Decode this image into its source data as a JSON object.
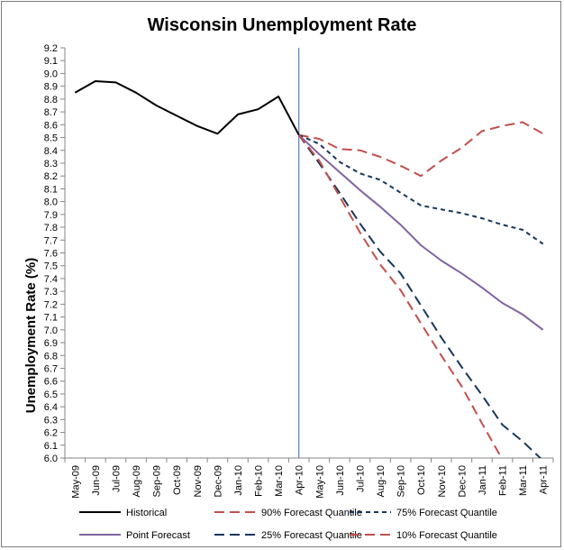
{
  "chart_data": {
    "type": "line",
    "title": "Wisconsin Unemployment Rate",
    "xlabel": "",
    "ylabel": "Unemployment Rate (%)",
    "ylim": [
      6.0,
      9.2
    ],
    "ytick_step": 0.1,
    "grid": false,
    "legend_position": "bottom",
    "vertical_marker_at": "Apr-10",
    "categories": [
      "May-09",
      "Jun-09",
      "Jul-09",
      "Aug-09",
      "Sep-09",
      "Oct-09",
      "Nov-09",
      "Dec-09",
      "Jan-10",
      "Feb-10",
      "Mar-10",
      "Apr-10",
      "May-10",
      "Jun-10",
      "Jul-10",
      "Aug-10",
      "Sep-10",
      "Oct-10",
      "Nov-10",
      "Dec-10",
      "Jan-11",
      "Feb-11",
      "Mar-11",
      "Apr-11"
    ],
    "series": [
      {
        "name": "Historical",
        "color": "#000000",
        "dash": "solid",
        "width": 2,
        "values": [
          8.85,
          8.94,
          8.93,
          8.85,
          8.75,
          8.67,
          8.59,
          8.53,
          8.68,
          8.72,
          8.82,
          8.52,
          null,
          null,
          null,
          null,
          null,
          null,
          null,
          null,
          null,
          null,
          null,
          null
        ]
      },
      {
        "name": "90% Forecast Quantile",
        "color": "#c0504d",
        "dash": "long",
        "width": 2,
        "values": [
          null,
          null,
          null,
          null,
          null,
          null,
          null,
          null,
          null,
          null,
          null,
          8.52,
          8.49,
          8.41,
          8.4,
          8.35,
          8.28,
          8.2,
          8.32,
          8.42,
          8.55,
          8.59,
          8.62,
          8.53
        ]
      },
      {
        "name": "75% Forecast Quantile",
        "color": "#17375e",
        "dash": "short",
        "width": 2,
        "values": [
          null,
          null,
          null,
          null,
          null,
          null,
          null,
          null,
          null,
          null,
          null,
          8.52,
          8.45,
          8.31,
          8.22,
          8.17,
          8.07,
          7.97,
          7.94,
          7.91,
          7.87,
          7.82,
          7.78,
          7.67
        ]
      },
      {
        "name": "Point Forecast",
        "color": "#8064a2",
        "dash": "solid",
        "width": 2,
        "values": [
          null,
          null,
          null,
          null,
          null,
          null,
          null,
          null,
          null,
          null,
          null,
          8.52,
          8.37,
          8.23,
          8.09,
          7.96,
          7.82,
          7.66,
          7.54,
          7.44,
          7.33,
          7.21,
          7.12,
          7.0
        ]
      },
      {
        "name": "25% Forecast Quantile",
        "color": "#17375e",
        "dash": "long",
        "width": 2,
        "values": [
          null,
          null,
          null,
          null,
          null,
          null,
          null,
          null,
          null,
          null,
          null,
          8.52,
          8.3,
          8.07,
          7.83,
          7.61,
          7.44,
          7.19,
          6.94,
          6.71,
          6.49,
          6.26,
          6.13,
          5.98
        ]
      },
      {
        "name": "10% Forecast Quantile",
        "color": "#c0504d",
        "dash": "long",
        "width": 2,
        "values": [
          null,
          null,
          null,
          null,
          null,
          null,
          null,
          null,
          null,
          null,
          null,
          8.52,
          8.32,
          8.04,
          7.76,
          7.51,
          7.31,
          7.05,
          6.8,
          6.56,
          6.27,
          5.99,
          null,
          null
        ]
      }
    ]
  }
}
